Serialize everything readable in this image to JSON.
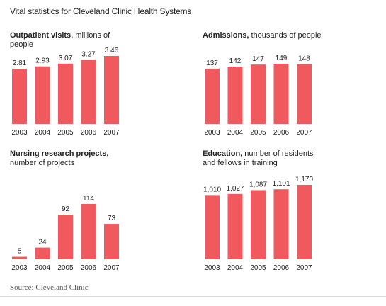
{
  "title": "Vital statistics for Cleveland Clinic Health Systems",
  "source": "Source: Cleveland Clinic",
  "colors": {
    "bar": "#F05A5F",
    "text": "#222222"
  },
  "chart_data": [
    {
      "type": "bar",
      "title_bold": "Outpatient visits,",
      "title_rest": "millions of people",
      "categories": [
        "2003",
        "2004",
        "2005",
        "2006",
        "2007"
      ],
      "values": [
        2.81,
        2.93,
        3.07,
        3.27,
        3.46
      ],
      "value_labels": [
        "2.81",
        "2.93",
        "3.07",
        "3.27",
        "3.46"
      ],
      "ylim": [
        0,
        3.46
      ]
    },
    {
      "type": "bar",
      "title_bold": "Admissions,",
      "title_rest": "thousands of people",
      "categories": [
        "2003",
        "2004",
        "2005",
        "2006",
        "2007"
      ],
      "values": [
        137,
        142,
        147,
        149,
        148
      ],
      "value_labels": [
        "137",
        "142",
        "147",
        "149",
        "148"
      ],
      "ylim": [
        0,
        149
      ]
    },
    {
      "type": "bar",
      "title_bold": "Nursing research projects,",
      "title_rest": "number of projects",
      "categories": [
        "2003",
        "2004",
        "2005",
        "2006",
        "2007"
      ],
      "values": [
        5,
        24,
        92,
        114,
        73
      ],
      "value_labels": [
        "5",
        "24",
        "92",
        "114",
        "73"
      ],
      "ylim": [
        0,
        114
      ]
    },
    {
      "type": "bar",
      "title_bold": "Education,",
      "title_rest": "number of residents and fellows in training",
      "categories": [
        "2003",
        "2004",
        "2005",
        "2006",
        "2007"
      ],
      "values": [
        1010,
        1027,
        1087,
        1101,
        1170
      ],
      "value_labels": [
        "1,010",
        "1,027",
        "1,087",
        "1,101",
        "1,170"
      ],
      "ylim": [
        0,
        1170
      ]
    }
  ]
}
